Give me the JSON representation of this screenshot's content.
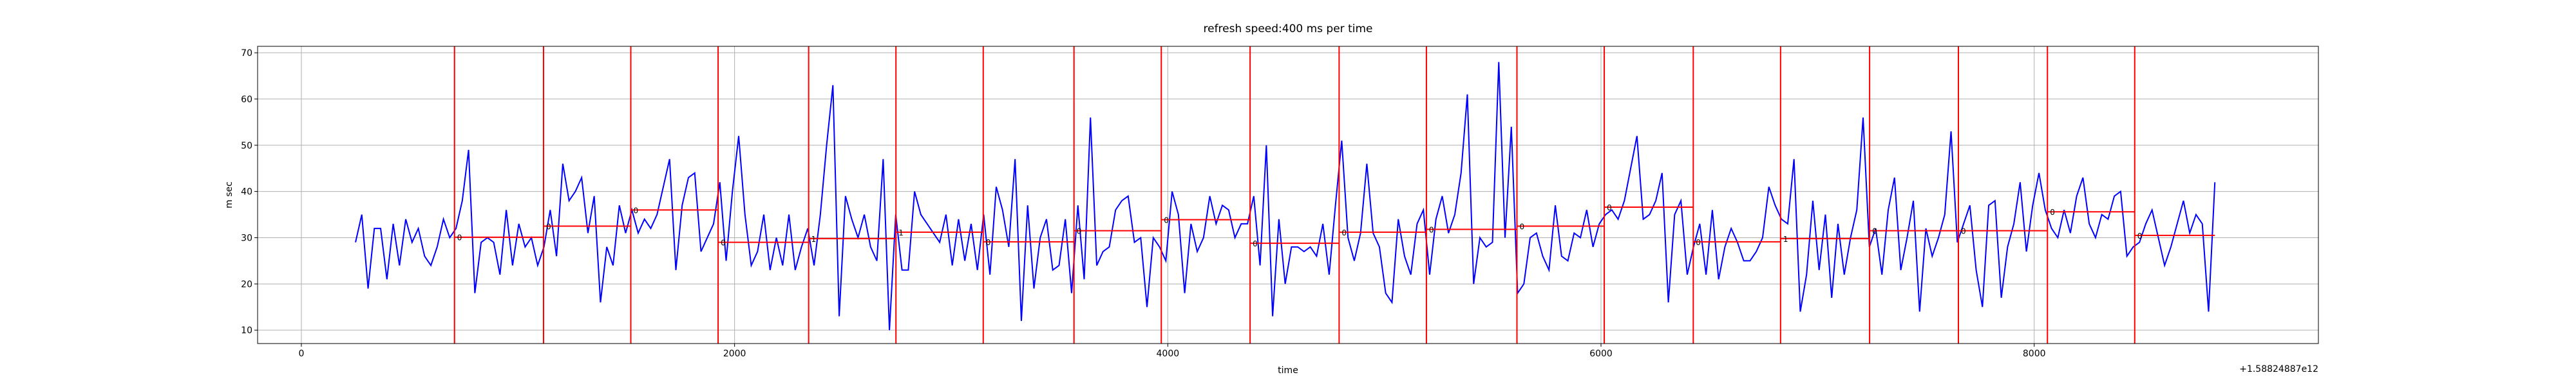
{
  "chart_data": {
    "type": "line",
    "title": "refresh speed:400 ms per time",
    "xlabel": "time",
    "ylabel": "m sec",
    "x_offset_label": "+1.58824887e12",
    "xlim": [
      -202,
      9312
    ],
    "ylim": [
      7.1,
      71.4
    ],
    "xticks": [
      0,
      2000,
      4000,
      6000,
      8000
    ],
    "yticks": [
      10,
      20,
      30,
      40,
      50,
      60,
      70
    ],
    "grid": true,
    "x": [
      250,
      279,
      308,
      337,
      366,
      395,
      424,
      453,
      482,
      511,
      540,
      569,
      598,
      627,
      656,
      685,
      714,
      743,
      772,
      801,
      830,
      859,
      888,
      917,
      946,
      975,
      1004,
      1033,
      1062,
      1091,
      1120,
      1149,
      1178,
      1207,
      1236,
      1265,
      1294,
      1323,
      1352,
      1381,
      1410,
      1439,
      1468,
      1497,
      1526,
      1555,
      1584,
      1613,
      1642,
      1671,
      1700,
      1729,
      1758,
      1787,
      1816,
      1845,
      1874,
      1903,
      1932,
      1961,
      1990,
      2019,
      2048,
      2077,
      2106,
      2135,
      2164,
      2193,
      2222,
      2251,
      2280,
      2309,
      2338,
      2367,
      2396,
      2425,
      2454,
      2483,
      2512,
      2541,
      2570,
      2599,
      2628,
      2657,
      2686,
      2715,
      2744,
      2773,
      2802,
      2831,
      2860,
      2889,
      2918,
      2947,
      2976,
      3005,
      3034,
      3063,
      3092,
      3121,
      3150,
      3179,
      3208,
      3237,
      3266,
      3295,
      3324,
      3353,
      3382,
      3411,
      3440,
      3469,
      3498,
      3527,
      3556,
      3585,
      3614,
      3643,
      3672,
      3701,
      3730,
      3759,
      3788,
      3817,
      3846,
      3875,
      3904,
      3933,
      3962,
      3991,
      4020,
      4049,
      4078,
      4107,
      4136,
      4165,
      4194,
      4223,
      4252,
      4281,
      4310,
      4339,
      4368,
      4397,
      4426,
      4455,
      4484,
      4513,
      4542,
      4571,
      4600,
      4629,
      4658,
      4687,
      4716,
      4745,
      4774,
      4803,
      4832,
      4861,
      4890,
      4919,
      4948,
      4977,
      5006,
      5035,
      5064,
      5093,
      5122,
      5151,
      5180,
      5209,
      5238,
      5267,
      5296,
      5325,
      5354,
      5383,
      5412,
      5441,
      5470,
      5499,
      5528,
      5557,
      5586,
      5615,
      5644,
      5673,
      5702,
      5731,
      5760,
      5789,
      5818,
      5847,
      5876,
      5905,
      5934,
      5963,
      5992,
      6021,
      6050,
      6079,
      6108,
      6137,
      6166,
      6195,
      6224,
      6253,
      6282,
      6311,
      6340,
      6369,
      6398,
      6427,
      6456,
      6485,
      6514,
      6543,
      6572,
      6601,
      6630,
      6659,
      6688,
      6717,
      6746,
      6775,
      6804,
      6833,
      6862,
      6891,
      6920,
      6949,
      6978,
      7007,
      7036,
      7065,
      7094,
      7123,
      7152,
      7181,
      7210,
      7239,
      7268,
      7297,
      7326,
      7355,
      7384,
      7413,
      7442,
      7471,
      7500,
      7529,
      7558,
      7587,
      7616,
      7645,
      7674,
      7703,
      7732,
      7761,
      7790,
      7819,
      7848,
      7877,
      7906,
      7935,
      7964,
      7993,
      8022,
      8051,
      8080,
      8109,
      8138,
      8167,
      8196,
      8225,
      8254,
      8283,
      8312,
      8341,
      8370,
      8399,
      8428,
      8457,
      8486,
      8515,
      8544,
      8573,
      8602,
      8631,
      8660,
      8689,
      8718,
      8747,
      8776,
      8805,
      8834
    ],
    "series": [
      {
        "color": "#0000ff",
        "values": [
          29,
          35,
          19,
          32,
          32,
          21,
          33,
          24,
          34,
          29,
          32,
          26,
          24,
          28,
          34,
          30,
          32,
          38,
          49,
          18,
          29,
          30,
          29,
          22,
          36,
          24,
          33,
          28,
          30,
          24,
          28,
          36,
          26,
          46,
          38,
          40,
          43,
          31,
          39,
          16,
          28,
          24,
          37,
          31,
          36,
          31,
          34,
          32,
          35,
          41,
          47,
          23,
          37,
          43,
          44,
          27,
          30,
          33,
          42,
          25,
          40,
          52,
          35,
          24,
          27,
          35,
          23,
          30,
          24,
          35,
          23,
          28,
          32,
          24,
          35,
          50,
          63,
          13,
          39,
          34,
          30,
          35,
          28,
          25,
          47,
          10,
          35,
          23,
          23,
          40,
          35,
          33,
          31,
          29,
          35,
          24,
          34,
          25,
          33,
          23,
          35,
          22,
          41,
          36,
          28,
          47,
          12,
          37,
          19,
          30,
          34,
          23,
          24,
          34,
          18,
          37,
          21,
          56,
          24,
          27,
          28,
          36,
          38,
          39,
          29,
          30,
          15,
          30,
          28,
          25,
          40,
          35,
          18,
          33,
          27,
          30,
          39,
          33,
          37,
          36,
          30,
          33,
          33,
          39,
          24,
          50,
          13,
          34,
          20,
          28,
          28,
          27,
          28,
          26,
          33,
          22,
          37,
          51,
          30,
          25,
          31,
          46,
          31,
          28,
          18,
          16,
          34,
          26,
          22,
          33,
          36,
          22,
          34,
          39,
          31,
          35,
          44,
          61,
          20,
          30,
          28,
          29,
          68,
          30,
          54,
          18,
          20,
          30,
          31,
          26,
          23,
          37,
          26,
          25,
          31,
          30,
          36,
          28,
          33,
          35,
          36,
          34,
          38,
          45,
          52,
          34,
          35,
          38,
          44,
          16,
          35,
          38,
          22,
          28,
          33,
          22,
          36,
          21,
          28,
          32,
          29,
          25,
          25,
          27,
          30,
          41,
          37,
          34,
          33,
          47,
          14,
          22,
          38,
          23,
          35,
          17,
          33,
          22,
          30,
          36,
          56,
          28,
          32,
          22,
          36,
          43,
          23,
          30,
          38,
          14,
          32,
          26,
          30,
          35,
          53,
          29,
          33,
          37,
          23,
          15,
          37,
          38,
          17,
          28,
          33,
          42,
          27,
          37,
          44,
          36,
          32,
          30,
          36,
          31,
          39,
          43,
          33,
          30,
          35,
          34,
          39,
          40,
          26,
          28,
          29,
          33,
          36,
          30,
          24,
          28,
          33,
          38,
          31,
          35,
          33,
          14,
          42
        ]
      }
    ],
    "marker_color": "#ff0000",
    "vlines": [
      707,
      1118,
      1521,
      1924,
      2342,
      2745,
      3148,
      3567,
      3970,
      4380,
      4791,
      5194,
      5612,
      6015,
      6426,
      6829,
      7240,
      7650,
      8061,
      8464
    ],
    "segments": [
      {
        "start": 707,
        "end": 1118,
        "value": 30.1,
        "label": "0"
      },
      {
        "start": 1118,
        "end": 1521,
        "value": 32.5,
        "label": "0"
      },
      {
        "start": 1521,
        "end": 1924,
        "value": 36,
        "label": "0"
      },
      {
        "start": 1924,
        "end": 2342,
        "value": 29,
        "label": "0"
      },
      {
        "start": 2342,
        "end": 2745,
        "value": 29.8,
        "label": "1"
      },
      {
        "start": 2745,
        "end": 3148,
        "value": 31.2,
        "label": "1"
      },
      {
        "start": 3148,
        "end": 3567,
        "value": 29.1,
        "label": "0"
      },
      {
        "start": 3567,
        "end": 3970,
        "value": 31.5,
        "label": "0"
      },
      {
        "start": 3970,
        "end": 4380,
        "value": 33.9,
        "label": "0"
      },
      {
        "start": 4380,
        "end": 4791,
        "value": 28.8,
        "label": "0"
      },
      {
        "start": 4791,
        "end": 5194,
        "value": 31.2,
        "label": "0"
      },
      {
        "start": 5194,
        "end": 5612,
        "value": 31.8,
        "label": "0"
      },
      {
        "start": 5612,
        "end": 6015,
        "value": 32.5,
        "label": "0"
      },
      {
        "start": 6015,
        "end": 6426,
        "value": 36.6,
        "label": "0"
      },
      {
        "start": 6426,
        "end": 6829,
        "value": 29.1,
        "label": "0"
      },
      {
        "start": 6829,
        "end": 7240,
        "value": 29.8,
        "label": "1"
      },
      {
        "start": 7240,
        "end": 7650,
        "value": 31.5,
        "label": "0"
      },
      {
        "start": 7650,
        "end": 8061,
        "value": 31.5,
        "label": "0"
      },
      {
        "start": 8061,
        "end": 8464,
        "value": 35.6,
        "label": "0"
      },
      {
        "start": 8464,
        "end": 8834,
        "value": 30.5,
        "label": "0"
      }
    ]
  }
}
